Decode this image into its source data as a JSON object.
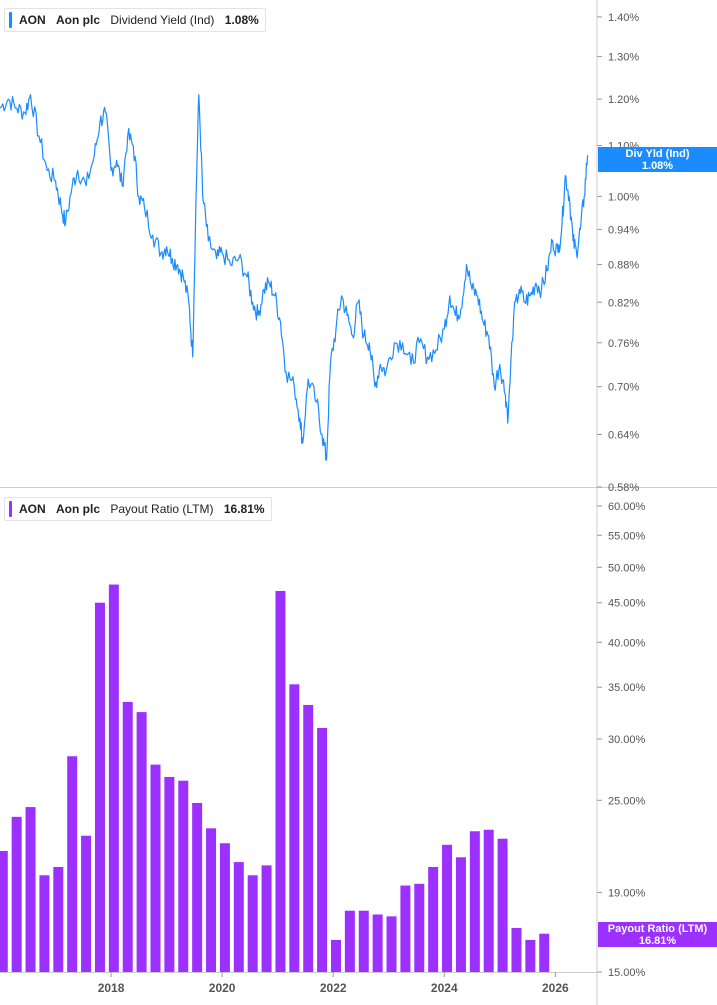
{
  "legends": {
    "top": {
      "ticker": "AON",
      "company": "Aon plc",
      "metric": "Dividend Yield (Ind)",
      "value": "1.08%"
    },
    "bottom": {
      "ticker": "AON",
      "company": "Aon plc",
      "metric": "Payout Ratio (LTM)",
      "value": "16.81%"
    }
  },
  "flags": {
    "top": {
      "label": "Div Yld (Ind)",
      "value": "1.08%"
    },
    "bottom": {
      "label": "Payout Ratio (LTM)",
      "value": "16.81%"
    }
  },
  "colors": {
    "line": "#1a8cff",
    "bar": "#9b30ff",
    "grid": "#cccccc",
    "axis_text": "#555555"
  },
  "chart_data": [
    {
      "type": "line",
      "title": "Dividend Yield (Ind)",
      "series": [
        {
          "name": "Dividend Yield (Ind)",
          "unit": "%"
        }
      ],
      "x_range": [
        2016.0,
        2026.75
      ],
      "y_ticks": [
        "0.58%",
        "0.64%",
        "0.70%",
        "0.76%",
        "0.82%",
        "0.88%",
        "0.94%",
        "1.00%",
        "1.10%",
        "1.20%",
        "1.30%",
        "1.40%"
      ],
      "y_tick_values": [
        0.58,
        0.64,
        0.7,
        0.76,
        0.82,
        0.88,
        0.94,
        1.0,
        1.1,
        1.2,
        1.3,
        1.4
      ],
      "scale": "log",
      "points": [
        [
          2016.0,
          1.18
        ],
        [
          2016.15,
          1.2
        ],
        [
          2016.3,
          1.18
        ],
        [
          2016.45,
          1.17
        ],
        [
          2016.55,
          1.21
        ],
        [
          2016.7,
          1.12
        ],
        [
          2016.85,
          1.05
        ],
        [
          2017.0,
          1.03
        ],
        [
          2017.1,
          0.98
        ],
        [
          2017.18,
          0.95
        ],
        [
          2017.3,
          1.02
        ],
        [
          2017.4,
          1.05
        ],
        [
          2017.55,
          1.02
        ],
        [
          2017.7,
          1.08
        ],
        [
          2017.8,
          1.15
        ],
        [
          2017.9,
          1.17
        ],
        [
          2018.0,
          1.05
        ],
        [
          2018.1,
          1.07
        ],
        [
          2018.2,
          1.02
        ],
        [
          2018.3,
          1.12
        ],
        [
          2018.4,
          1.1
        ],
        [
          2018.5,
          1.0
        ],
        [
          2018.6,
          0.98
        ],
        [
          2018.75,
          0.93
        ],
        [
          2018.9,
          0.9
        ],
        [
          2019.0,
          0.91
        ],
        [
          2019.1,
          0.89
        ],
        [
          2019.2,
          0.88
        ],
        [
          2019.3,
          0.86
        ],
        [
          2019.4,
          0.82
        ],
        [
          2019.47,
          0.74
        ],
        [
          2019.52,
          0.95
        ],
        [
          2019.58,
          1.21
        ],
        [
          2019.65,
          1.0
        ],
        [
          2019.75,
          0.92
        ],
        [
          2019.9,
          0.89
        ],
        [
          2020.0,
          0.9
        ],
        [
          2020.15,
          0.88
        ],
        [
          2020.3,
          0.89
        ],
        [
          2020.45,
          0.86
        ],
        [
          2020.55,
          0.82
        ],
        [
          2020.65,
          0.8
        ],
        [
          2020.75,
          0.84
        ],
        [
          2020.85,
          0.85
        ],
        [
          2020.95,
          0.83
        ],
        [
          2021.05,
          0.79
        ],
        [
          2021.15,
          0.72
        ],
        [
          2021.3,
          0.7
        ],
        [
          2021.4,
          0.66
        ],
        [
          2021.45,
          0.63
        ],
        [
          2021.55,
          0.71
        ],
        [
          2021.7,
          0.68
        ],
        [
          2021.8,
          0.64
        ],
        [
          2021.88,
          0.61
        ],
        [
          2021.95,
          0.73
        ],
        [
          2022.05,
          0.78
        ],
        [
          2022.15,
          0.83
        ],
        [
          2022.25,
          0.8
        ],
        [
          2022.35,
          0.77
        ],
        [
          2022.45,
          0.82
        ],
        [
          2022.55,
          0.77
        ],
        [
          2022.65,
          0.76
        ],
        [
          2022.75,
          0.7
        ],
        [
          2022.85,
          0.73
        ],
        [
          2022.95,
          0.72
        ],
        [
          2023.1,
          0.76
        ],
        [
          2023.25,
          0.76
        ],
        [
          2023.4,
          0.73
        ],
        [
          2023.55,
          0.76
        ],
        [
          2023.7,
          0.74
        ],
        [
          2023.85,
          0.75
        ],
        [
          2024.0,
          0.78
        ],
        [
          2024.1,
          0.83
        ],
        [
          2024.2,
          0.8
        ],
        [
          2024.3,
          0.81
        ],
        [
          2024.4,
          0.88
        ],
        [
          2024.5,
          0.84
        ],
        [
          2024.6,
          0.83
        ],
        [
          2024.7,
          0.79
        ],
        [
          2024.8,
          0.77
        ],
        [
          2024.9,
          0.7
        ],
        [
          2025.0,
          0.73
        ],
        [
          2025.1,
          0.69
        ],
        [
          2025.15,
          0.66
        ],
        [
          2025.25,
          0.8
        ],
        [
          2025.35,
          0.84
        ],
        [
          2025.45,
          0.82
        ],
        [
          2025.55,
          0.83
        ],
        [
          2025.65,
          0.85
        ],
        [
          2025.75,
          0.84
        ],
        [
          2025.85,
          0.87
        ],
        [
          2025.95,
          0.92
        ],
        [
          2026.05,
          0.9
        ],
        [
          2026.12,
          0.95
        ],
        [
          2026.18,
          1.04
        ],
        [
          2026.25,
          1.0
        ],
        [
          2026.32,
          0.92
        ],
        [
          2026.38,
          0.9
        ],
        [
          2026.45,
          0.94
        ],
        [
          2026.52,
          1.0
        ],
        [
          2026.58,
          1.08
        ]
      ]
    },
    {
      "type": "bar",
      "title": "Payout Ratio (LTM)",
      "series": [
        {
          "name": "Payout Ratio (LTM)",
          "unit": "%"
        }
      ],
      "x_ticks": [
        "2018",
        "2020",
        "2022",
        "2024",
        "2026"
      ],
      "x_tick_values": [
        2018,
        2020,
        2022,
        2024,
        2026
      ],
      "x_range": [
        2016.0,
        2026.75
      ],
      "y_ticks": [
        "15.00%",
        "19.00%",
        "25.00%",
        "30.00%",
        "35.00%",
        "40.00%",
        "45.00%",
        "50.00%",
        "55.00%",
        "60.00%"
      ],
      "y_tick_values": [
        15,
        19,
        25,
        30,
        35,
        40,
        45,
        50,
        55,
        60
      ],
      "scale": "log",
      "bars": [
        [
          2016.05,
          21.5
        ],
        [
          2016.3,
          23.8
        ],
        [
          2016.55,
          24.5
        ],
        [
          2016.8,
          20.0
        ],
        [
          2017.05,
          20.5
        ],
        [
          2017.3,
          28.5
        ],
        [
          2017.55,
          22.5
        ],
        [
          2017.8,
          45.0
        ],
        [
          2018.05,
          47.5
        ],
        [
          2018.3,
          33.5
        ],
        [
          2018.55,
          32.5
        ],
        [
          2018.8,
          27.8
        ],
        [
          2019.05,
          26.8
        ],
        [
          2019.3,
          26.5
        ],
        [
          2019.55,
          24.8
        ],
        [
          2019.8,
          23.0
        ],
        [
          2020.05,
          22.0
        ],
        [
          2020.3,
          20.8
        ],
        [
          2020.55,
          20.0
        ],
        [
          2020.8,
          20.6
        ],
        [
          2021.05,
          46.6
        ],
        [
          2021.3,
          35.3
        ],
        [
          2021.55,
          33.2
        ],
        [
          2021.8,
          31.0
        ],
        [
          2022.05,
          16.5
        ],
        [
          2022.3,
          18.0
        ],
        [
          2022.55,
          18.0
        ],
        [
          2022.8,
          17.8
        ],
        [
          2023.05,
          17.7
        ],
        [
          2023.3,
          19.4
        ],
        [
          2023.55,
          19.5
        ],
        [
          2023.8,
          20.5
        ],
        [
          2024.05,
          21.9
        ],
        [
          2024.3,
          21.1
        ],
        [
          2024.55,
          22.8
        ],
        [
          2024.8,
          22.9
        ],
        [
          2025.05,
          22.3
        ],
        [
          2025.3,
          17.1
        ],
        [
          2025.55,
          16.5
        ],
        [
          2025.8,
          16.81
        ]
      ]
    }
  ]
}
